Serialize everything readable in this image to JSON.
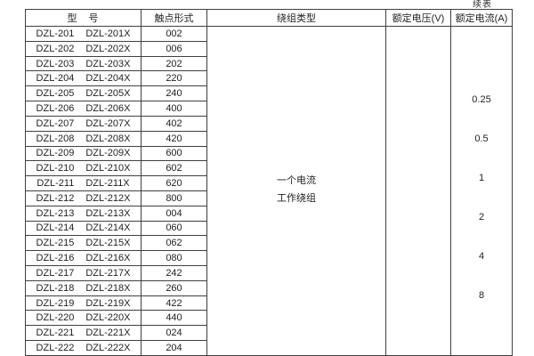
{
  "continued_label": "续表",
  "header": {
    "model": "型　号",
    "contact_form": "触点形式",
    "winding_type": "绕组类型",
    "rated_voltage": "额定电压(V)",
    "rated_current": "额定电流(A)"
  },
  "winding_type": {
    "line1": "一个电流",
    "line2": "工作绕组"
  },
  "rated_voltage_value": "",
  "current_ratings": [
    "0.25",
    "0.5",
    "1",
    "2",
    "4",
    "8"
  ],
  "rows": [
    {
      "model": "DZL-201",
      "model_x": "DZL-201X",
      "contact": "002"
    },
    {
      "model": "DZL-202",
      "model_x": "DZL-202X",
      "contact": "006"
    },
    {
      "model": "DZL-203",
      "model_x": "DZL-203X",
      "contact": "202"
    },
    {
      "model": "DZL-204",
      "model_x": "DZL-204X",
      "contact": "220"
    },
    {
      "model": "DZL-205",
      "model_x": "DZL-205X",
      "contact": "240"
    },
    {
      "model": "DZL-206",
      "model_x": "DZL-206X",
      "contact": "400"
    },
    {
      "model": "DZL-207",
      "model_x": "DZL-207X",
      "contact": "402"
    },
    {
      "model": "DZL-208",
      "model_x": "DZL-208X",
      "contact": "420"
    },
    {
      "model": "DZL-209",
      "model_x": "DZL-209X",
      "contact": "600"
    },
    {
      "model": "DZL-210",
      "model_x": "DZL-210X",
      "contact": "602"
    },
    {
      "model": "DZL-211",
      "model_x": "DZL-211X",
      "contact": "620"
    },
    {
      "model": "DZL-212",
      "model_x": "DZL-212X",
      "contact": "800"
    },
    {
      "model": "DZL-213",
      "model_x": "DZL-213X",
      "contact": "004"
    },
    {
      "model": "DZL-214",
      "model_x": "DZL-214X",
      "contact": "060"
    },
    {
      "model": "DZL-215",
      "model_x": "DZL-215X",
      "contact": "062"
    },
    {
      "model": "DZL-216",
      "model_x": "DZL-216X",
      "contact": "080"
    },
    {
      "model": "DZL-217",
      "model_x": "DZL-217X",
      "contact": "242"
    },
    {
      "model": "DZL-218",
      "model_x": "DZL-218X",
      "contact": "260"
    },
    {
      "model": "DZL-219",
      "model_x": "DZL-219X",
      "contact": "422"
    },
    {
      "model": "DZL-220",
      "model_x": "DZL-220X",
      "contact": "440"
    },
    {
      "model": "DZL-221",
      "model_x": "DZL-221X",
      "contact": "024"
    },
    {
      "model": "DZL-222",
      "model_x": "DZL-222X",
      "contact": "204"
    }
  ]
}
